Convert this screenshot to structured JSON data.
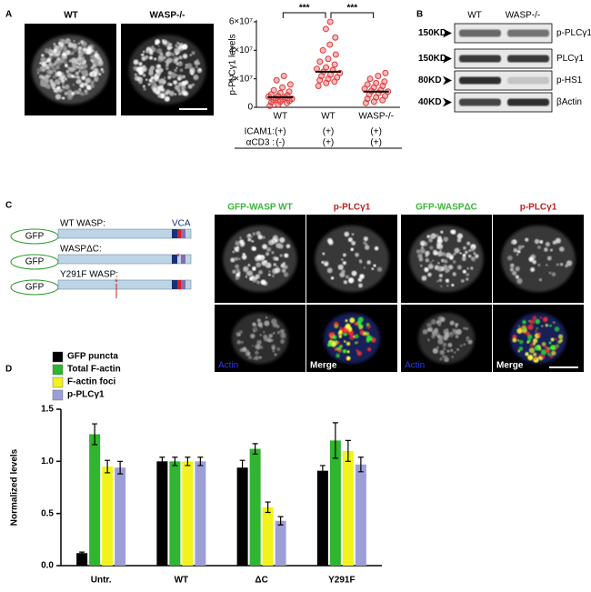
{
  "panel_labels": [
    "A",
    "B",
    "C",
    "D"
  ],
  "panel_a_images": {
    "labels": [
      "WT",
      "WASP-/-"
    ]
  },
  "blot": {
    "lanes": [
      "WT",
      "WASP-/-"
    ],
    "rows": [
      {
        "size": "150KD",
        "label": "p-PLCγ1"
      },
      {
        "size": "150KD",
        "label": "PLCγ1"
      },
      {
        "size": "80KD",
        "label": "p-HS1"
      },
      {
        "size": "40KD",
        "label": "βActin"
      }
    ]
  },
  "schematic": {
    "tag": "GFP",
    "domains": "VCA",
    "constructs": [
      "WT WASP:",
      "WASPΔC:",
      "Y291F WASP:"
    ]
  },
  "panel_c_images": {
    "headers": [
      "GFP-WASP WT",
      "p-PLCγ1",
      "GFP-WASPΔC",
      "p-PLCγ1"
    ],
    "overlays": [
      "Actin",
      "Merge",
      "Actin",
      "Merge"
    ]
  },
  "chart_data": [
    {
      "type": "strip",
      "ylabel": "p-PLCγ1 levels",
      "color": "#e03a3a",
      "categories": [
        "WT",
        "WT",
        "WASP-/-"
      ],
      "values": [
        [
          1000000,
          2000000,
          3000000,
          3500000,
          4000000,
          4500000,
          5000000,
          5500000,
          6000000,
          6500000,
          7000000,
          7500000,
          8000000,
          8500000,
          9000000,
          10000000,
          11000000,
          12000000,
          14000000,
          16000000,
          19000000,
          22000000
        ],
        [
          15000000,
          17000000,
          18000000,
          19000000,
          20000000,
          21000000,
          22000000,
          23000000,
          24000000,
          25000000,
          26000000,
          27000000,
          28000000,
          30000000,
          32000000,
          34000000,
          37000000,
          40000000,
          44000000,
          49000000,
          55000000,
          60000000
        ],
        [
          3000000,
          4000000,
          5000000,
          6000000,
          7000000,
          8000000,
          9000000,
          10000000,
          11000000,
          11500000,
          12000000,
          13000000,
          14000000,
          15000000,
          16000000,
          17000000,
          18000000,
          20000000,
          22000000,
          24000000
        ]
      ],
      "means": [
        7000000,
        25000000,
        11000000
      ],
      "ylim": [
        0,
        60000000
      ],
      "yticks": [
        0,
        {
          "value": 20000000,
          "label": "2×10⁷"
        },
        {
          "value": 40000000,
          "label": "4×10⁷"
        },
        {
          "value": 60000000,
          "label": "6×10⁷"
        }
      ],
      "significance": [
        "***",
        "***"
      ],
      "conditions": [
        {
          "label": "ICAM1:",
          "values": [
            "(+)",
            "(+)",
            "(+)"
          ]
        },
        {
          "label": "αCD3 :",
          "values": [
            "(-)",
            "(+)",
            "(+)"
          ]
        }
      ]
    },
    {
      "type": "bar",
      "ylabel": "Normalized levels",
      "categories": [
        "Untr.",
        "WT",
        "ΔC",
        "Y291F"
      ],
      "series": [
        {
          "name": "GFP puncta",
          "color": "#000000",
          "values": [
            0.12,
            1.0,
            0.94,
            0.91
          ],
          "errors": [
            0.01,
            0.04,
            0.07,
            0.05
          ]
        },
        {
          "name": "Total F-actin",
          "color": "#2fb52f",
          "values": [
            1.26,
            1.0,
            1.12,
            1.2
          ],
          "errors": [
            0.1,
            0.04,
            0.05,
            0.17
          ]
        },
        {
          "name": "F-actin foci",
          "color": "#f2f21c",
          "values": [
            0.95,
            1.0,
            0.56,
            1.1
          ],
          "errors": [
            0.06,
            0.04,
            0.05,
            0.1
          ]
        },
        {
          "name": "p-PLCγ1",
          "color": "#9c9fd6",
          "values": [
            0.94,
            1.0,
            0.43,
            0.97
          ],
          "errors": [
            0.06,
            0.04,
            0.04,
            0.07
          ]
        }
      ],
      "ylim": [
        0,
        1.5
      ],
      "yticks": [
        {
          "value": 0,
          "label": "0.0"
        },
        0.5,
        {
          "value": 1,
          "label": "1.0"
        },
        1.5
      ]
    }
  ]
}
